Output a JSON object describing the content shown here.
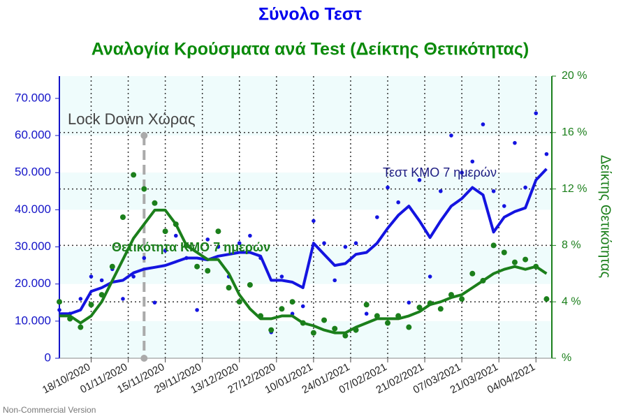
{
  "chart_data": {
    "type": "line",
    "title": "Σύνολο Τεστ",
    "subtitle": "Αναλογία Κρούσματα ανά Test (Δείκτης Θετικότητας)",
    "y2_label": "Δείκτης Θετικότητας",
    "footer": "Non-Commercial Version",
    "x": [
      "06/10/2020",
      "10/10/2020",
      "14/10/2020",
      "18/10/2020",
      "22/10/2020",
      "26/10/2020",
      "30/10/2020",
      "03/11/2020",
      "07/11/2020",
      "11/11/2020",
      "15/11/2020",
      "19/11/2020",
      "23/11/2020",
      "27/11/2020",
      "01/12/2020",
      "05/12/2020",
      "09/12/2020",
      "13/12/2020",
      "17/12/2020",
      "21/12/2020",
      "25/12/2020",
      "29/12/2020",
      "02/01/2021",
      "06/01/2021",
      "10/01/2021",
      "14/01/2021",
      "18/01/2021",
      "22/01/2021",
      "26/01/2021",
      "30/01/2021",
      "03/02/2021",
      "07/02/2021",
      "11/02/2021",
      "15/02/2021",
      "19/02/2021",
      "23/02/2021",
      "27/02/2021",
      "03/03/2021",
      "07/03/2021",
      "11/03/2021",
      "15/03/2021",
      "19/03/2021",
      "23/03/2021",
      "27/03/2021",
      "31/03/2021",
      "04/04/2021",
      "08/04/2021"
    ],
    "xlim": [
      "06/10/2020",
      "10/04/2021"
    ],
    "xticks": [
      "18/10/2020",
      "01/11/2020",
      "15/11/2020",
      "29/11/2020",
      "13/12/2020",
      "27/12/2020",
      "10/01/2021",
      "24/01/2021",
      "07/02/2021",
      "21/02/2021",
      "07/03/2021",
      "21/03/2021",
      "04/04/2021"
    ],
    "ylim": [
      0,
      76000
    ],
    "yticks": [
      0,
      {
        "value": 10000,
        "label": "10.000"
      },
      {
        "value": 20000,
        "label": "20.000"
      },
      {
        "value": 30000,
        "label": "30.000"
      },
      {
        "value": 40000,
        "label": "40.000"
      },
      {
        "value": 50000,
        "label": "50.000"
      },
      {
        "value": 60000,
        "label": "60.000"
      },
      {
        "value": 70000,
        "label": "70.000"
      }
    ],
    "y2lim": [
      0,
      20
    ],
    "y2ticks": [
      {
        "value": 0,
        "label": "%"
      },
      {
        "value": 4,
        "label": "4 %"
      },
      {
        "value": 8,
        "label": "8 %"
      },
      {
        "value": 12,
        "label": "12 %"
      },
      {
        "value": 16,
        "label": "16 %"
      },
      {
        "value": 20,
        "label": "20 %"
      }
    ],
    "grid": true,
    "series": [
      {
        "name": "Τεστ ΚΜΟ 7 ημερών",
        "color": "#1414e0",
        "label_color": "#1a1a80",
        "axis": "y",
        "values": [
          12000,
          12000,
          13000,
          18000,
          19000,
          20500,
          21000,
          23000,
          24000,
          24500,
          25000,
          26000,
          27000,
          27000,
          26500,
          27500,
          28000,
          28500,
          28500,
          27500,
          21000,
          21000,
          20500,
          19000,
          31000,
          28000,
          25000,
          25500,
          28000,
          28500,
          31000,
          35000,
          38500,
          41000,
          37000,
          32500,
          37000,
          41000,
          43000,
          46000,
          44000,
          34000,
          38000,
          39500,
          40500,
          48000,
          51000
        ],
        "points": [
          13000,
          12000,
          16000,
          22000,
          21000,
          24000,
          16000,
          22000,
          27000,
          15000,
          29000,
          33000,
          27000,
          13000,
          32000,
          30000,
          22000,
          31000,
          33000,
          27000,
          7000,
          22000,
          12000,
          14000,
          37000,
          31000,
          21000,
          30000,
          31000,
          12000,
          38000,
          46000,
          42000,
          15000,
          48000,
          22000,
          45000,
          60000,
          50000,
          53000,
          63000,
          45000,
          41000,
          58000,
          46000,
          66000,
          55000
        ]
      },
      {
        "name": "Θετικότητα ΚΜΟ 7 ημερών",
        "color": "#1b7f1b",
        "label_color": "#1b7f1b",
        "axis": "y2",
        "values": [
          3.0,
          3.0,
          2.5,
          3.0,
          4.0,
          5.5,
          7.0,
          8.5,
          9.5,
          10.5,
          10.5,
          9.5,
          8.0,
          7.5,
          7.0,
          7.0,
          6.0,
          4.5,
          3.5,
          2.8,
          2.8,
          3.0,
          3.0,
          2.5,
          2.3,
          2.0,
          1.8,
          1.8,
          2.2,
          2.5,
          2.8,
          2.8,
          2.8,
          3.0,
          3.3,
          3.8,
          4.0,
          4.3,
          4.5,
          5.0,
          5.5,
          6.0,
          6.3,
          6.5,
          6.3,
          6.5,
          6.0
        ],
        "points": [
          4.0,
          2.8,
          2.2,
          3.8,
          4.5,
          6.5,
          10.0,
          13.0,
          12.0,
          11.0,
          9.0,
          9.5,
          8.0,
          6.5,
          6.2,
          9.0,
          5.0,
          4.0,
          5.2,
          3.0,
          2.0,
          3.5,
          4.0,
          2.5,
          1.8,
          2.7,
          2.1,
          1.6,
          2.0,
          3.8,
          3.0,
          2.5,
          3.0,
          2.2,
          3.6,
          3.9,
          3.5,
          4.5,
          4.2,
          6.0,
          5.5,
          8.0,
          7.5,
          6.8,
          7.0,
          6.5,
          4.2
        ]
      }
    ],
    "annotations": [
      {
        "text": "Lock Down Χώρας",
        "x": "07/11/2020",
        "y": 60000
      }
    ]
  }
}
